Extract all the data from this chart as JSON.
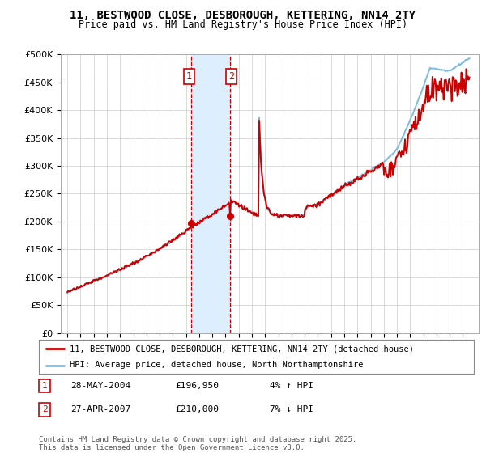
{
  "title_line1": "11, BESTWOOD CLOSE, DESBOROUGH, KETTERING, NN14 2TY",
  "title_line2": "Price paid vs. HM Land Registry's House Price Index (HPI)",
  "ylim": [
    0,
    500000
  ],
  "yticks": [
    0,
    50000,
    100000,
    150000,
    200000,
    250000,
    300000,
    350000,
    400000,
    450000,
    500000
  ],
  "ytick_labels": [
    "£0",
    "£50K",
    "£100K",
    "£150K",
    "£200K",
    "£250K",
    "£300K",
    "£350K",
    "£400K",
    "£450K",
    "£500K"
  ],
  "hpi_color": "#7bbde0",
  "price_color": "#cc0000",
  "sale1_year": 2004.41,
  "sale1_price": 196950,
  "sale2_year": 2007.32,
  "sale2_price": 210000,
  "sale1_label": "1",
  "sale2_label": "2",
  "legend_line1": "11, BESTWOOD CLOSE, DESBOROUGH, KETTERING, NN14 2TY (detached house)",
  "legend_line2": "HPI: Average price, detached house, North Northamptonshire",
  "table_row1": [
    "1",
    "28-MAY-2004",
    "£196,950",
    "4% ↑ HPI"
  ],
  "table_row2": [
    "2",
    "27-APR-2007",
    "£210,000",
    "7% ↓ HPI"
  ],
  "footnote": "Contains HM Land Registry data © Crown copyright and database right 2025.\nThis data is licensed under the Open Government Licence v3.0.",
  "bg_color": "#ffffff",
  "grid_color": "#cccccc",
  "shade_color": "#ddeeff"
}
